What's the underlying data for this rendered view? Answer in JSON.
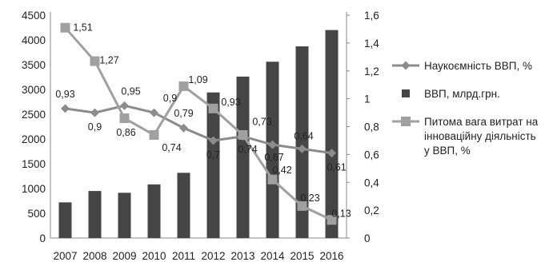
{
  "chart_data": {
    "type": "bar",
    "categories": [
      "2007",
      "2008",
      "2009",
      "2010",
      "2011",
      "2012",
      "2013",
      "2014",
      "2015",
      "2016"
    ],
    "left_axis": {
      "min": 0,
      "max": 4500,
      "step": 500,
      "ticks": [
        "0",
        "500",
        "1000",
        "1500",
        "2000",
        "2500",
        "3000",
        "3500",
        "4000",
        "4500"
      ]
    },
    "right_axis": {
      "min": 0,
      "max": 1.6,
      "step": 0.2,
      "ticks": [
        "0",
        "0,2",
        "0,4",
        "0,6",
        "0,8",
        "1",
        "1,2",
        "1,4",
        "1,6"
      ]
    },
    "series": [
      {
        "name": "Наукоємність ВВП, %",
        "kind": "line",
        "axis": "right",
        "marker": "diamond",
        "color": "#8c8c8c",
        "values": [
          0.93,
          0.9,
          0.95,
          0.9,
          0.79,
          0.7,
          0.73,
          0.67,
          0.64,
          0.61
        ],
        "labels": [
          "0,93",
          "0,9",
          "0,95",
          "0,9",
          "0,79",
          "0,7",
          "0,73",
          "0,67",
          "0,64",
          "0,61"
        ]
      },
      {
        "name": "ВВП, млрд.грн.",
        "kind": "bar",
        "axis": "left",
        "color": "#454545",
        "values": [
          720,
          950,
          914,
          1083,
          1317,
          2940,
          3260,
          3560,
          3870,
          4200
        ]
      },
      {
        "name": "Питома вага витрат на інноваційну діяльність у ВВП, %",
        "legend_lines": [
          "Питома вага витрат на",
          "інноваційну діяльність",
          "у ВВП, %"
        ],
        "kind": "line",
        "axis": "right",
        "marker": "square",
        "color": "#a0a0a0",
        "values": [
          1.51,
          1.27,
          0.86,
          0.74,
          1.09,
          0.93,
          0.74,
          0.42,
          0.23,
          0.13
        ],
        "labels": [
          "1,51",
          "1,27",
          "0,86",
          "0,74",
          "1,09",
          "0,93",
          "0,74",
          "0,42",
          "0,23",
          "0,13"
        ]
      }
    ],
    "legend_position": "right",
    "grid": false
  }
}
